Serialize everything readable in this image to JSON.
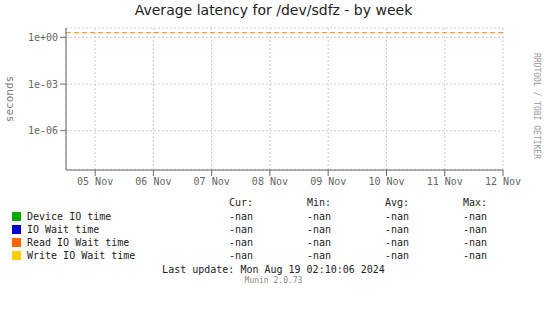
{
  "chart_data": {
    "type": "line",
    "title": "Average latency for /dev/sdfz - by week",
    "ylabel": "seconds",
    "log": "y",
    "grid": true,
    "xlim": [
      0,
      7.5
    ],
    "xticks": [
      {
        "value": 0.5,
        "label": "05 Nov"
      },
      {
        "value": 1.5,
        "label": "06 Nov"
      },
      {
        "value": 2.5,
        "label": "07 Nov"
      },
      {
        "value": 3.5,
        "label": "08 Nov"
      },
      {
        "value": 4.5,
        "label": "09 Nov"
      },
      {
        "value": 5.5,
        "label": "10 Nov"
      },
      {
        "value": 6.5,
        "label": "11 Nov"
      },
      {
        "value": 7.5,
        "label": "12 Nov"
      }
    ],
    "ylim": [
      3e-09,
      4.0
    ],
    "yticks": [
      {
        "value": 1e-06,
        "label": "1e-06"
      },
      {
        "value": 0.001,
        "label": "1e-03"
      },
      {
        "value": 1,
        "label": "1e+00"
      }
    ],
    "reference_lines": [
      {
        "y": 2.0,
        "color": "#ff8800",
        "line_style": "dashed"
      }
    ],
    "legend_columns": [
      "Cur:",
      "Min:",
      "Avg:",
      "Max:"
    ],
    "series": [
      {
        "name": "Device IO time",
        "color": "#00aa00",
        "values": [],
        "stats": [
          "-nan",
          "-nan",
          "-nan",
          "-nan"
        ]
      },
      {
        "name": "IO Wait time",
        "color": "#0000cc",
        "values": [],
        "stats": [
          "-nan",
          "-nan",
          "-nan",
          "-nan"
        ]
      },
      {
        "name": "Read IO Wait time",
        "color": "#ff6600",
        "values": [],
        "stats": [
          "-nan",
          "-nan",
          "-nan",
          "-nan"
        ]
      },
      {
        "name": "Write IO Wait time",
        "color": "#ffcc00",
        "values": [],
        "stats": [
          "-nan",
          "-nan",
          "-nan",
          "-nan"
        ]
      }
    ],
    "footer": "Last update: Mon Aug 19 02:10:06 2024",
    "credit": "Munin 2.0.73",
    "watermark": "RRDTOOL / TOBI OETIKER"
  }
}
